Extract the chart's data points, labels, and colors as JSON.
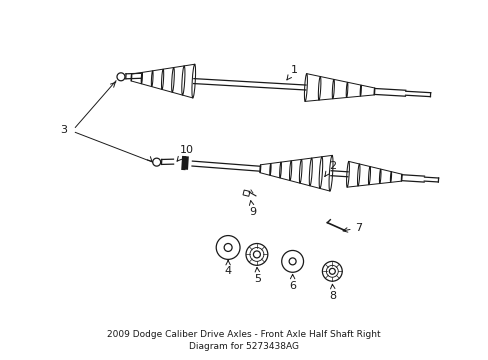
{
  "background_color": "#ffffff",
  "line_color": "#1a1a1a",
  "figsize": [
    4.89,
    3.6
  ],
  "dpi": 100,
  "title": "2009 Dodge Caliber Drive Axles - Front Axle Half Shaft Right\nDiagram for 5273438AG",
  "title_fontsize": 6.5,
  "label_fontsize": 8
}
